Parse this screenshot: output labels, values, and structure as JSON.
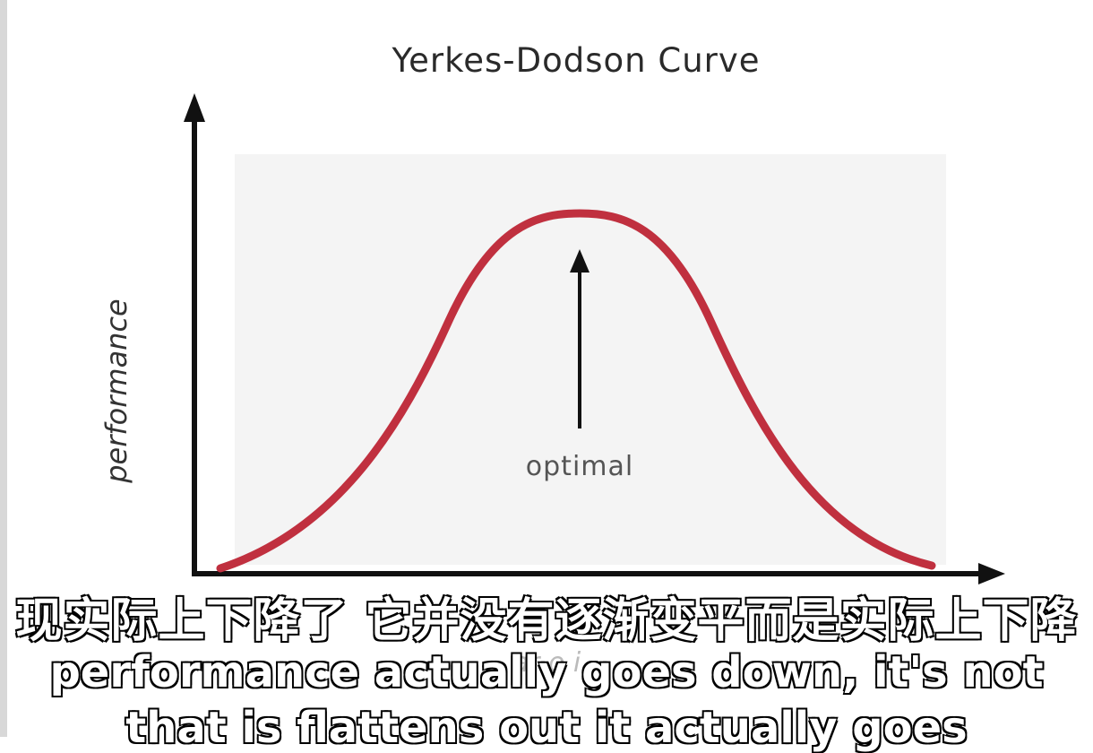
{
  "title": "Yerkes-Dodson Curve",
  "y_axis_label": "performance",
  "annotation": "optimal",
  "x_axis_label_partial": "ar o  i",
  "subtitles": {
    "chinese": "现实际上下降了 它并没有逐渐变平而是实际上下降",
    "english_line1": "performance actually goes down, it's not",
    "english_line2": "that is flattens out it actually goes"
  },
  "colors": {
    "curve": "#c0303f",
    "axis": "#111111",
    "plot_background": "#f4f4f4"
  }
}
